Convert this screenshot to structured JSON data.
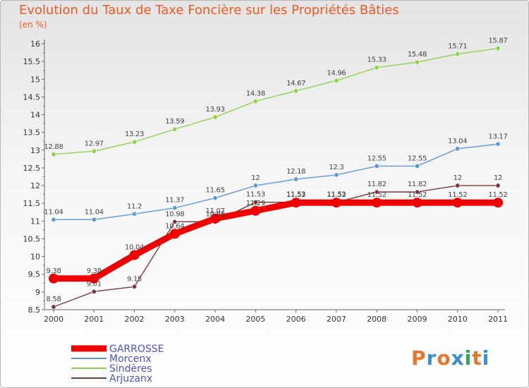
{
  "title": "Evolution du Taux de Taxe Foncière sur les Propriétés Bâties",
  "subtitle": "(en %)",
  "logo": {
    "text": "Proxiti",
    "letters": [
      "P",
      "r",
      "o",
      "x",
      "i",
      "t",
      "i"
    ],
    "colors": [
      "#e8772e",
      "#3a8fd0",
      "#e8772e",
      "#3a8fd0",
      "#2ea84a",
      "#e8772e",
      "#3a8fd0"
    ]
  },
  "chart_data": {
    "type": "line",
    "title": "Evolution du Taux de Taxe Foncière sur les Propriétés Bâties",
    "ylabel": "(en %)",
    "xlabel": "",
    "x": [
      "2000",
      "2001",
      "2002",
      "2003",
      "2004",
      "2005",
      "2006",
      "2007",
      "2008",
      "2009",
      "2010",
      "2011"
    ],
    "ylim": [
      8.5,
      16
    ],
    "yticks": [
      "8.5",
      "9",
      "9.5",
      "10",
      "10.5",
      "11",
      "11.5",
      "12",
      "12.5",
      "13",
      "13.5",
      "14",
      "14.5",
      "15",
      "15.5",
      "16"
    ],
    "grid": false,
    "legend_position": "bottom-left",
    "series": [
      {
        "name": "GARROSSE",
        "color": "#ee0000",
        "values": [
          9.38,
          9.38,
          10.04,
          10.64,
          11.07,
          11.29,
          11.52,
          11.52,
          11.52,
          11.52,
          11.52,
          11.52
        ],
        "labels": [
          "9.38",
          "9.38",
          "10.04",
          "10.64",
          "11.07",
          "11.29",
          "11.52",
          "11.52",
          "11.52",
          "11.52",
          "11.52",
          "11.52"
        ]
      },
      {
        "name": "Morcenx",
        "color": "#5b9bd5",
        "values": [
          11.04,
          11.04,
          11.2,
          11.37,
          11.65,
          12,
          12.18,
          12.3,
          12.55,
          12.55,
          13.04,
          13.17
        ],
        "labels": [
          "11.04",
          "11.04",
          "11.2",
          "11.37",
          "11.65",
          "12",
          "12.18",
          "12.3",
          "12.55",
          "12.55",
          "13.04",
          "13.17"
        ]
      },
      {
        "name": "Sindères",
        "color": "#8ed34a",
        "values": [
          12.88,
          12.97,
          13.23,
          13.59,
          13.93,
          14.38,
          14.67,
          14.96,
          15.33,
          15.48,
          15.71,
          15.87
        ],
        "labels": [
          "12.88",
          "12.97",
          "13.23",
          "13.59",
          "13.93",
          "14.38",
          "14.67",
          "14.96",
          "15.33",
          "15.48",
          "15.71",
          "15.87"
        ]
      },
      {
        "name": "Arjuzanx",
        "color": "#7a3a3a",
        "values": [
          8.58,
          9.01,
          9.15,
          10.98,
          10.98,
          11.53,
          11.53,
          11.53,
          11.82,
          11.82,
          12,
          12
        ],
        "labels": [
          "8.58",
          "9.01",
          "9.15",
          "10.98",
          "10.98",
          "11.53",
          "11.53",
          "11.53",
          "11.82",
          "11.82",
          "12",
          "12"
        ]
      }
    ]
  }
}
